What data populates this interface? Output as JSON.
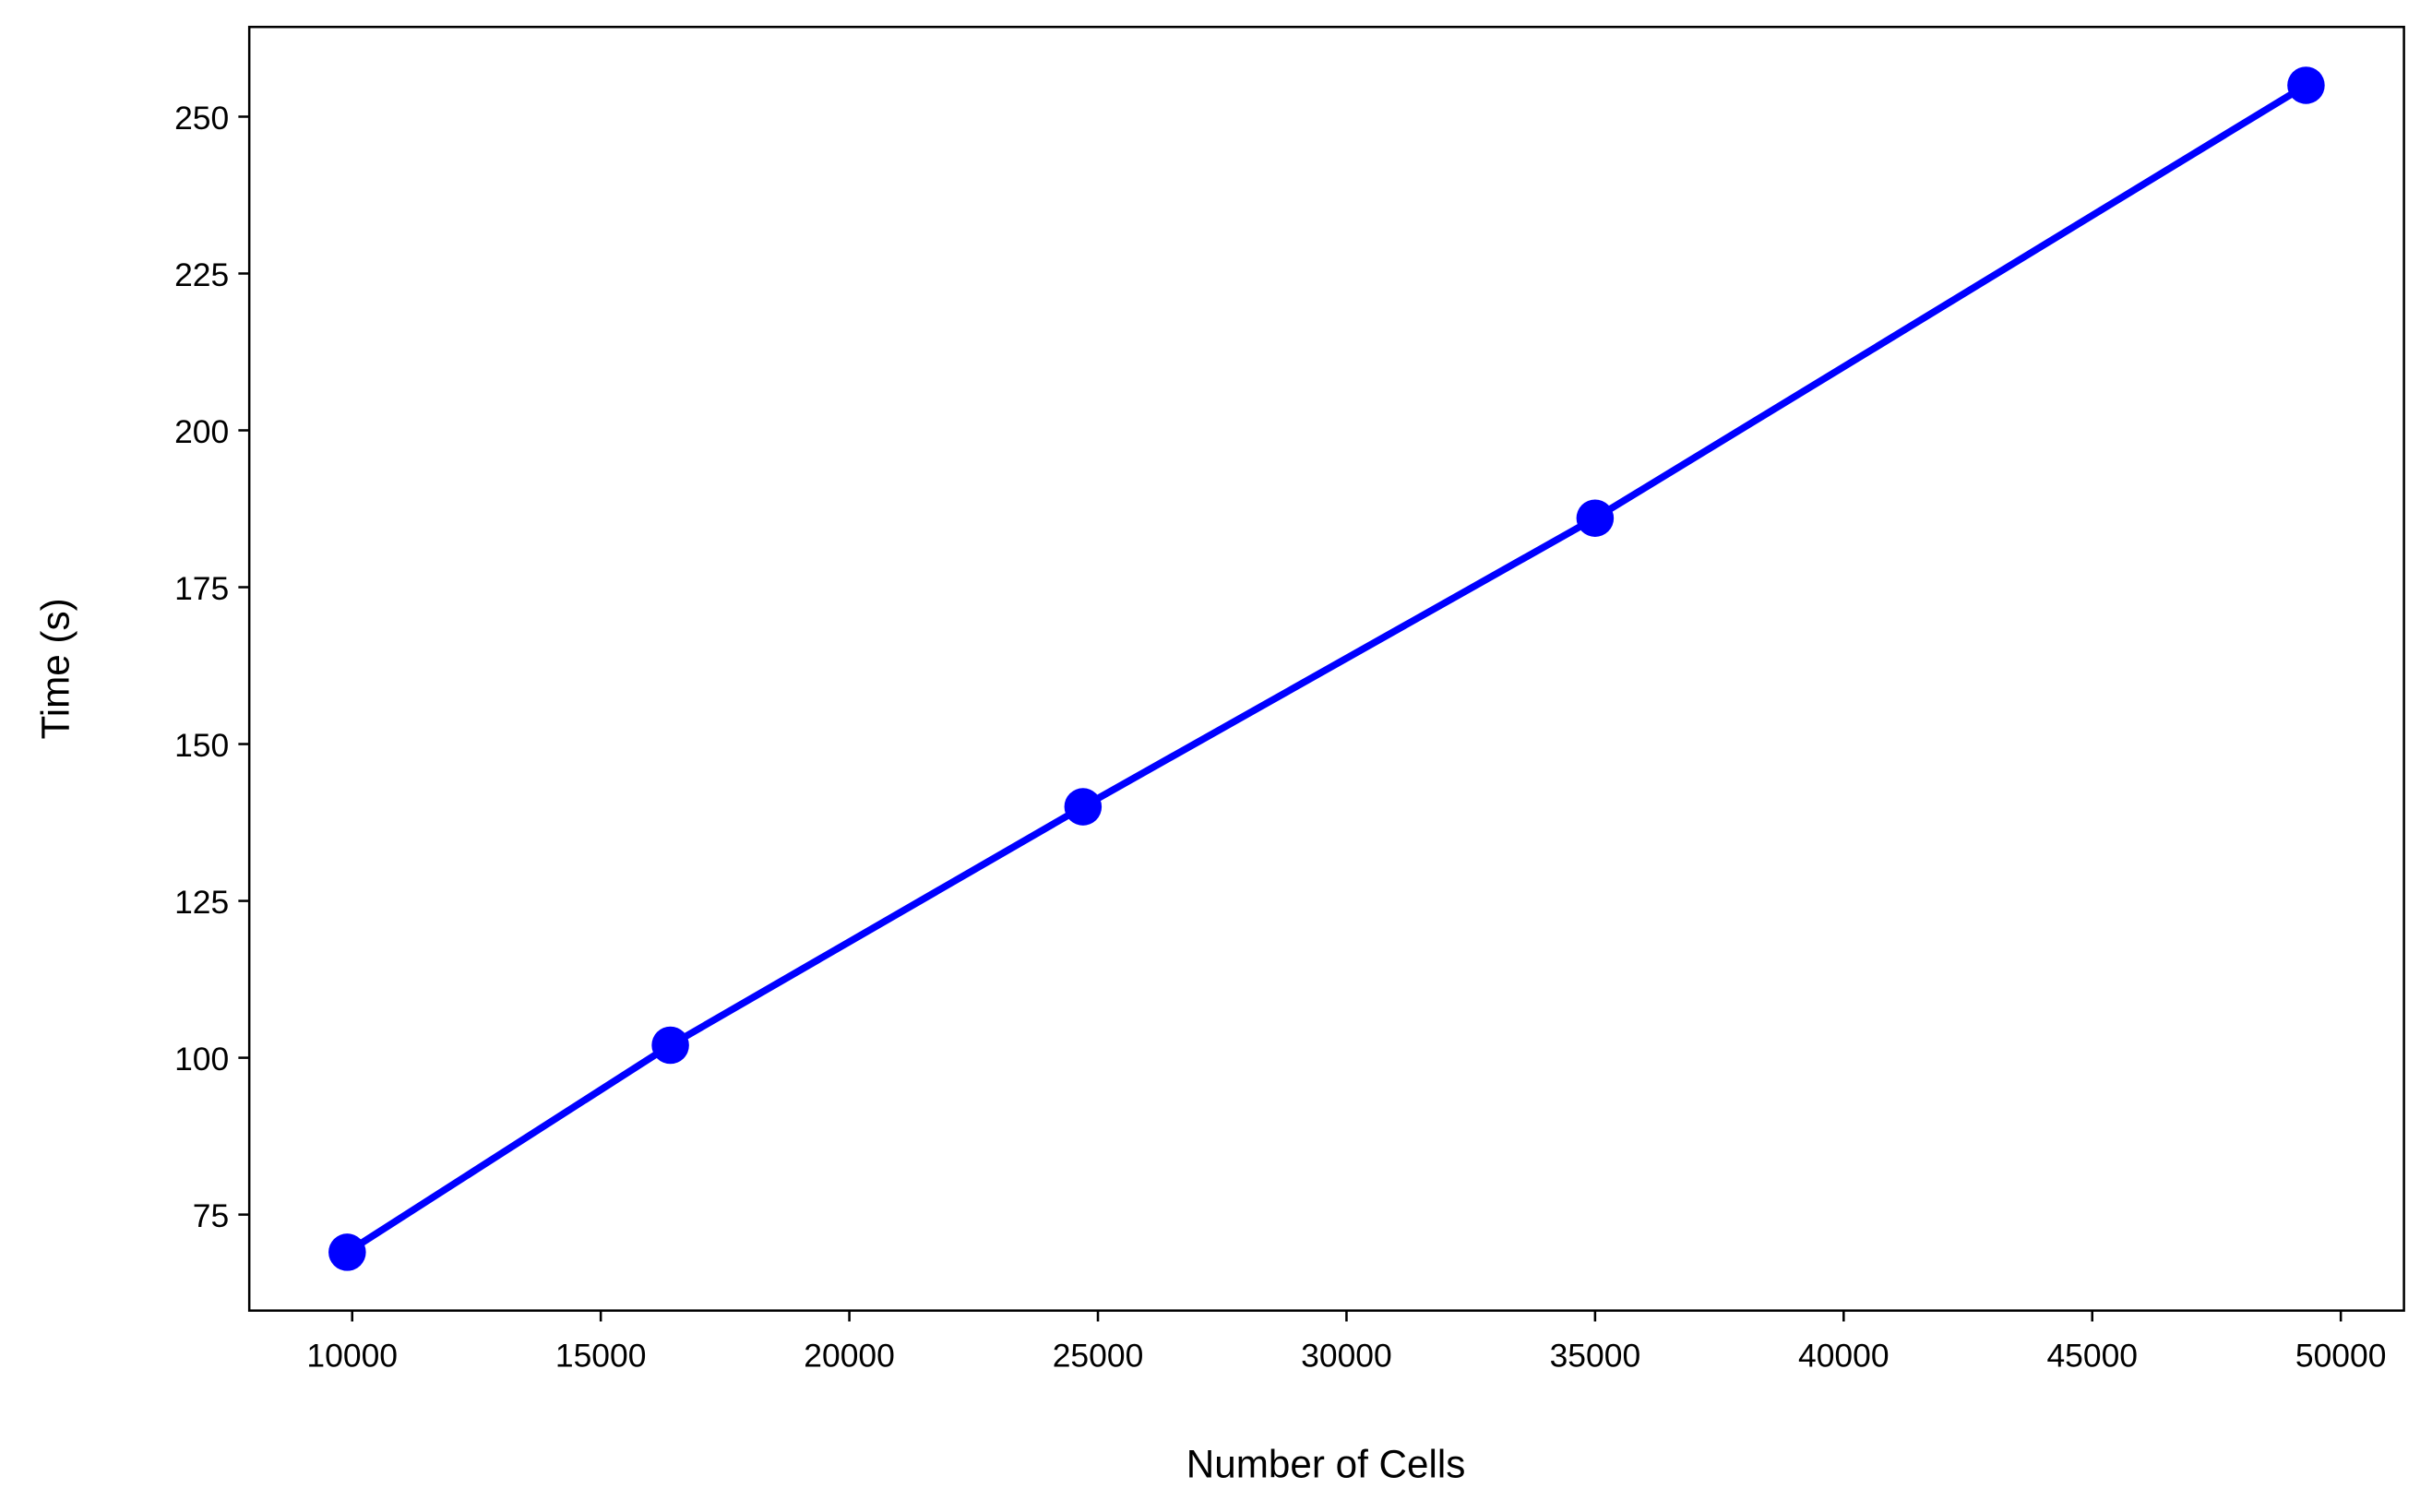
{
  "chart_data": {
    "type": "line",
    "x_label": "Number of Cells",
    "y_label": "Time (s)",
    "x": [
      9900,
      16400,
      24700,
      35000,
      49300
    ],
    "series": [
      {
        "color": "#0000ff",
        "values": [
          69,
          102,
          140,
          186,
          255
        ]
      }
    ],
    "xlim": [
      7930,
      51270
    ],
    "ylim": [
      59.7,
      264.3
    ],
    "xticks": [
      10000,
      15000,
      20000,
      25000,
      30000,
      35000,
      40000,
      45000,
      50000
    ],
    "yticks": [
      75,
      100,
      125,
      150,
      175,
      200,
      225,
      250
    ]
  }
}
